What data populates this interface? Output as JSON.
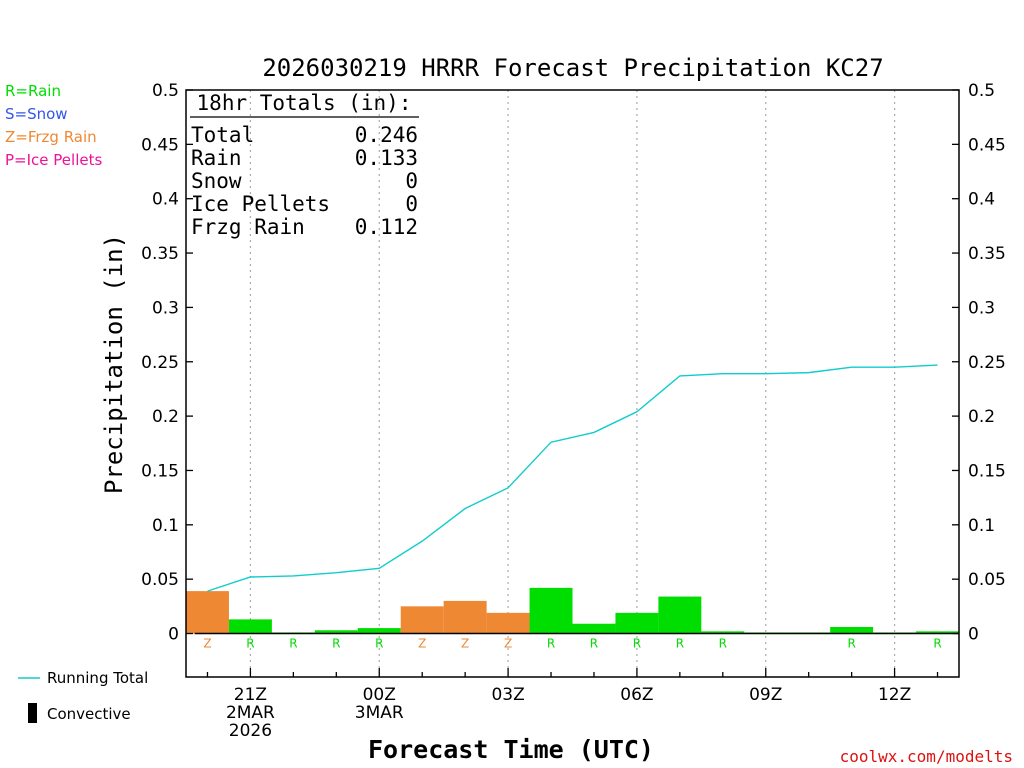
{
  "chart_data": {
    "type": "bar",
    "title": "2026030219 HRRR Forecast Precipitation KC27",
    "xlabel": "Forecast Time (UTC)",
    "ylabel": "Precipitation (in)",
    "ylim": [
      -0.04,
      0.5
    ],
    "yticks": [
      0,
      0.05,
      0.1,
      0.15,
      0.2,
      0.25,
      0.3,
      0.35,
      0.4,
      0.45,
      0.5
    ],
    "ytick_labels": [
      "0",
      "0.05",
      "0.1",
      "0.15",
      "0.2",
      "0.25",
      "0.3",
      "0.35",
      "0.4",
      "0.45",
      "0.5"
    ],
    "xlim": [
      -0.5,
      17.5
    ],
    "xticks": [
      {
        "x": 1,
        "lines": [
          "21Z",
          "2MAR",
          "2026"
        ]
      },
      {
        "x": 4,
        "lines": [
          "00Z",
          "3MAR"
        ]
      },
      {
        "x": 7,
        "lines": [
          "03Z"
        ]
      },
      {
        "x": 10,
        "lines": [
          "06Z"
        ]
      },
      {
        "x": 13,
        "lines": [
          "09Z"
        ]
      },
      {
        "x": 16,
        "lines": [
          "12Z"
        ]
      }
    ],
    "hours": [
      0,
      1,
      2,
      3,
      4,
      5,
      6,
      7,
      8,
      9,
      10,
      11,
      12,
      13,
      14,
      15,
      16,
      17
    ],
    "hourly": [
      0.039,
      0.013,
      0.001,
      0.003,
      0.005,
      0.025,
      0.03,
      0.019,
      0.042,
      0.009,
      0.019,
      0.034,
      0.002,
      0.001,
      0.001,
      0.006,
      0.001,
      0.002
    ],
    "ptype": [
      "Z",
      "R",
      "R",
      "R",
      "R",
      "Z",
      "Z",
      "Z",
      "R",
      "R",
      "R",
      "R",
      "R",
      "",
      "",
      "R",
      "",
      "R"
    ],
    "running_total": [
      0.039,
      0.052,
      0.053,
      0.056,
      0.06,
      0.085,
      0.115,
      0.134,
      0.176,
      0.185,
      0.204,
      0.237,
      0.239,
      0.239,
      0.24,
      0.245,
      0.245,
      0.247
    ]
  },
  "totals_box": {
    "header": "18hr Totals (in):",
    "rows": [
      {
        "label": "Total",
        "value": "0.246"
      },
      {
        "label": "Rain",
        "value": "0.133"
      },
      {
        "label": "Snow",
        "value": "0"
      },
      {
        "label": "Ice Pellets",
        "value": "0"
      },
      {
        "label": "Frzg Rain",
        "value": "0.112"
      }
    ]
  },
  "type_legend": [
    {
      "code": "R",
      "text": "R=Rain",
      "color": "#00dd00"
    },
    {
      "code": "S",
      "text": "S=Snow",
      "color": "#3355ee"
    },
    {
      "code": "Z",
      "text": "Z=Frzg Rain",
      "color": "#ee8833"
    },
    {
      "code": "P",
      "text": "P=Ice Pellets",
      "color": "#ee1199"
    }
  ],
  "line_legend": {
    "running_total": "Running Total",
    "convective": "Convective"
  },
  "colors": {
    "rain": "#00dd00",
    "frzg_rain": "#ee8833",
    "running_total": "#11cccc",
    "credit": "#dd1111"
  },
  "credit": "coolwx.com/modelts"
}
